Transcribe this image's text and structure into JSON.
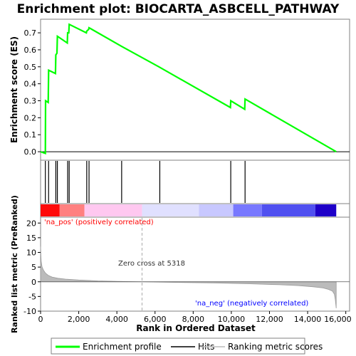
{
  "chart_data": {
    "type": "line",
    "title": "Enrichment plot: BIOCARTA_ASBCELL_PATHWAY",
    "top_panel": {
      "ylabel": "Enrichment score (ES)",
      "ylim": [
        -0.05,
        0.78
      ],
      "yticks": [
        "0.0",
        "0.1",
        "0.2",
        "0.3",
        "0.4",
        "0.5",
        "0.6",
        "0.7"
      ],
      "ytick_values": [
        0.0,
        0.1,
        0.2,
        0.3,
        0.4,
        0.5,
        0.6,
        0.7
      ],
      "series": [
        {
          "name": "Enrichment profile",
          "color": "#00ff00",
          "x": [
            0,
            250,
            260,
            400,
            420,
            780,
            800,
            860,
            880,
            1400,
            1420,
            1480,
            1500,
            2400,
            2420,
            2520,
            2540,
            4250,
            6200,
            9950,
            9970,
            10700,
            10720,
            15500
          ],
          "y": [
            0.0,
            -0.01,
            0.3,
            0.29,
            0.48,
            0.46,
            0.57,
            0.58,
            0.68,
            0.64,
            0.7,
            0.7,
            0.75,
            0.7,
            0.71,
            0.72,
            0.73,
            0.62,
            0.5,
            0.26,
            0.3,
            0.25,
            0.31,
            0.0
          ]
        }
      ]
    },
    "hits": {
      "name": "Hits",
      "positions": [
        250,
        420,
        800,
        880,
        1420,
        1500,
        2420,
        2540,
        4250,
        6250,
        9970,
        10720
      ]
    },
    "color_bar": {
      "segments": [
        {
          "start": 0,
          "end": 1000,
          "color": "#ff0a0a"
        },
        {
          "start": 1000,
          "end": 2300,
          "color": "#ff8080"
        },
        {
          "start": 2300,
          "end": 5318,
          "color": "#ffc8f0"
        },
        {
          "start": 5318,
          "end": 8300,
          "color": "#e0e0ff"
        },
        {
          "start": 8300,
          "end": 10100,
          "color": "#c8c8ff"
        },
        {
          "start": 10100,
          "end": 11600,
          "color": "#7878ff"
        },
        {
          "start": 11600,
          "end": 14400,
          "color": "#5050f0"
        },
        {
          "start": 14400,
          "end": 15500,
          "color": "#1e00c8"
        }
      ]
    },
    "bottom_panel": {
      "ylabel": "Ranked list metric (PreRanked)",
      "ylim": [
        -10,
        22
      ],
      "yticks": [
        "20",
        "15",
        "10",
        "5",
        "0",
        "-5",
        "-10"
      ],
      "ytick_values": [
        20,
        15,
        10,
        5,
        0,
        -5,
        -10
      ],
      "series": [
        {
          "name": "Ranking metric scores",
          "color": "#bbbbbb",
          "x": [
            0,
            30,
            80,
            150,
            250,
            400,
            600,
            900,
            1300,
            2000,
            3000,
            4000,
            5318,
            7000,
            9000,
            11000,
            12500,
            13500,
            14300,
            14800,
            15100,
            15300,
            15400,
            15450,
            15500
          ],
          "y": [
            12,
            7,
            5,
            4,
            3,
            2.2,
            1.6,
            1.2,
            0.9,
            0.6,
            0.3,
            0.15,
            0,
            -0.2,
            -0.4,
            -0.7,
            -1.0,
            -1.3,
            -1.7,
            -2.1,
            -2.6,
            -3.2,
            -4.2,
            -6,
            -9
          ]
        }
      ],
      "annotations": {
        "pos_label": "'na_pos' (positively correlated)",
        "neg_label": "'na_neg' (negatively correlated)",
        "zero_cross": "Zero cross at 5318",
        "zero_cross_x": 5318,
        "pos_color": "#ff0000",
        "neg_color": "#0000ff"
      }
    },
    "xaxis": {
      "label": "Rank in Ordered Dataset",
      "xlim": [
        0,
        16200
      ],
      "ticks": [
        "0",
        "2,000",
        "4,000",
        "6,000",
        "8,000",
        "10,000",
        "12,000",
        "14,000",
        "16,000"
      ],
      "tick_values": [
        0,
        2000,
        4000,
        6000,
        8000,
        10000,
        12000,
        14000,
        16000
      ]
    },
    "legend": {
      "placement": "bottom",
      "entries": [
        "Enrichment profile",
        "Hits",
        "Ranking metric scores"
      ]
    }
  }
}
